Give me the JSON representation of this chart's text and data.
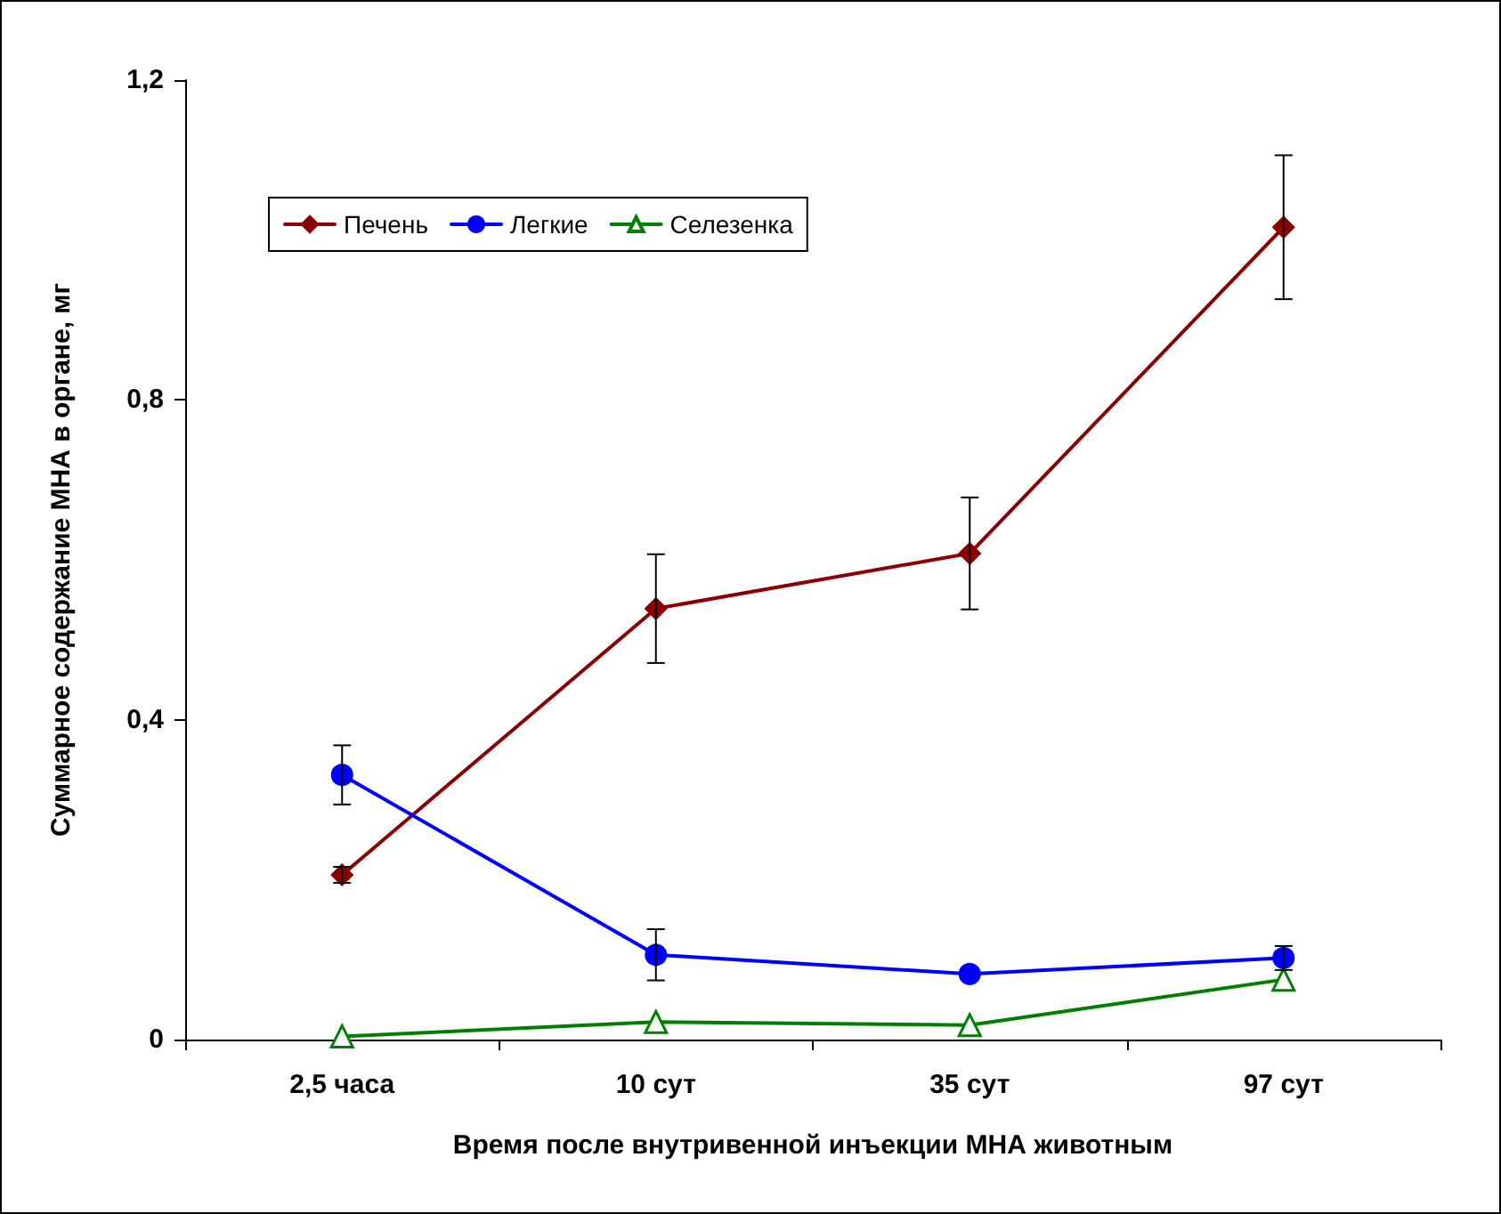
{
  "chart_data": {
    "type": "line",
    "xlabel": "Время после внутривенной инъекции МНА животным",
    "ylabel": "Суммарное содержание МНА в органе, мг",
    "categories": [
      "2,5 часа",
      "10 сут",
      "35 сут",
      "97 сут"
    ],
    "ylim": [
      0,
      1.2
    ],
    "yticks": [
      {
        "value": 0,
        "label": "0"
      },
      {
        "value": 0.4,
        "label": "0,4"
      },
      {
        "value": 0.8,
        "label": "0,8"
      },
      {
        "value": 1.2,
        "label": "1,2"
      }
    ],
    "grid": false,
    "legend": "top left",
    "line_style": "solid",
    "series": [
      {
        "name": "Печень",
        "color": "#8b0000",
        "marker": "diamond",
        "values": [
          0.206,
          0.539,
          0.608,
          1.016
        ],
        "errors": [
          0.01,
          0.068,
          0.07,
          0.09
        ]
      },
      {
        "name": "Легкие",
        "color": "#0000ff",
        "marker": "circle",
        "values": [
          0.331,
          0.106,
          0.082,
          0.102
        ],
        "errors": [
          0.037,
          0.032,
          null,
          0.015
        ]
      },
      {
        "name": "Селезенка",
        "color": "#008000",
        "marker": "triangle",
        "values": [
          0.004,
          0.022,
          0.018,
          0.075
        ]
      }
    ]
  }
}
